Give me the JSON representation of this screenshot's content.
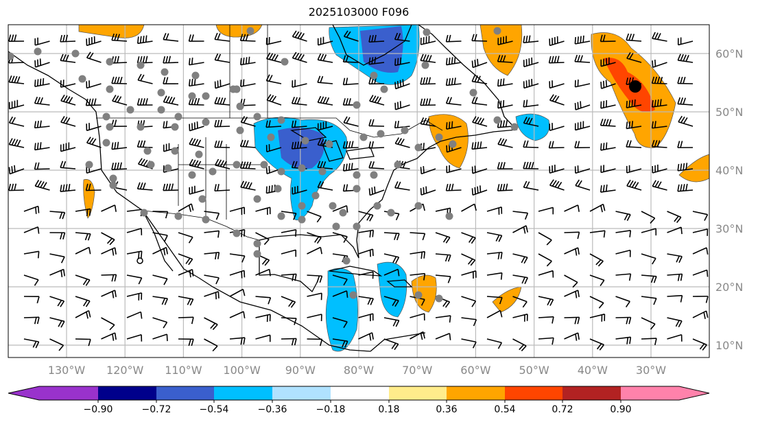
{
  "title": "2025103000 F096",
  "lat_labels": [
    "60°N",
    "50°N",
    "40°N",
    "30°N",
    "20°N",
    "10°N"
  ],
  "lon_labels": [
    "130°W",
    "120°W",
    "110°W",
    "100°W",
    "90°W",
    "80°W",
    "70°W",
    "60°W",
    "50°W",
    "40°W",
    "30°W"
  ],
  "colorbar": {
    "ticks": [
      "−0.90",
      "−0.72",
      "−0.54",
      "−0.36",
      "−0.18",
      "0.18",
      "0.36",
      "0.54",
      "0.72",
      "0.90"
    ],
    "colors": [
      "#9932cc",
      "#00008b",
      "#3a5fcd",
      "#00bfff",
      "#b0e2ff",
      "#ffffff",
      "#ffec8b",
      "#ffa500",
      "#ff4500",
      "#b22222",
      "#ff82ab"
    ]
  }
}
